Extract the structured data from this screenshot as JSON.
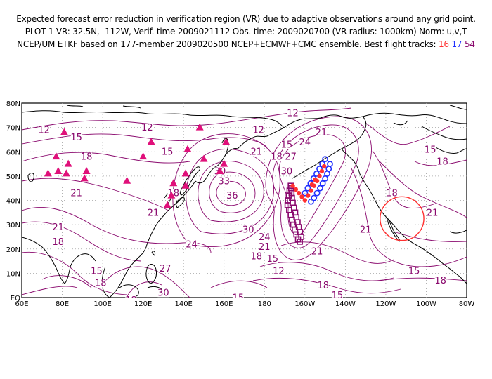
{
  "title": {
    "line1": "Expected forecast error reduction in verification region (VR) due to adaptive observations around any grid point.",
    "line2": "PLOT 1 VR: 32.5N, -112W, Verif. time 2009021112 Obs. time: 2009020700 (VR radius: 1000km) Norm: u,v,T",
    "line3_prefix": "NCEP/UM ETKF based on 177-member 2009020500 NCEP+ECMWF+CMC ensemble. Best flight tracks:",
    "tracks": [
      "16",
      "17",
      "54"
    ]
  },
  "colors": {
    "contour": "#8a0a6e",
    "track16": "#ff3030",
    "track17": "#2030ff",
    "track54": "#8a0a6e",
    "raob": "#e0107a",
    "vr_circle": "#ff3030",
    "grid": "#a0a0a0"
  },
  "axes": {
    "lon_labels": [
      "60E",
      "80E",
      "100E",
      "120E",
      "140E",
      "160E",
      "180",
      "160W",
      "140W",
      "120W",
      "100W",
      "80W"
    ],
    "lat_labels": [
      "EQ",
      "10N",
      "20N",
      "30N",
      "40N",
      "50N",
      "60N",
      "70N",
      "80N"
    ],
    "lon_range": [
      60,
      280
    ],
    "lat_range": [
      0,
      80
    ]
  },
  "verification_region": {
    "lat": 32.5,
    "lon": 248,
    "radius_km": 1000
  },
  "contour_labels": [
    {
      "text": "12",
      "lon": 71,
      "lat": 68
    },
    {
      "text": "15",
      "lon": 87,
      "lat": 65
    },
    {
      "text": "18",
      "lon": 92,
      "lat": 57
    },
    {
      "text": "12",
      "lon": 122,
      "lat": 69
    },
    {
      "text": "15",
      "lon": 132,
      "lat": 59
    },
    {
      "text": "12",
      "lon": 194,
      "lat": 75
    },
    {
      "text": "12",
      "lon": 177,
      "lat": 68
    },
    {
      "text": "21",
      "lon": 176,
      "lat": 59
    },
    {
      "text": "18",
      "lon": 186,
      "lat": 57
    },
    {
      "text": "15",
      "lon": 191,
      "lat": 62
    },
    {
      "text": "30",
      "lon": 158,
      "lat": 51
    },
    {
      "text": "33",
      "lon": 160,
      "lat": 47
    },
    {
      "text": "36",
      "lon": 164,
      "lat": 41
    },
    {
      "text": "18",
      "lon": 135,
      "lat": 42
    },
    {
      "text": "21",
      "lon": 87,
      "lat": 42
    },
    {
      "text": "21",
      "lon": 125,
      "lat": 34
    },
    {
      "text": "21",
      "lon": 78,
      "lat": 28
    },
    {
      "text": "18",
      "lon": 78,
      "lat": 22
    },
    {
      "text": "24",
      "lon": 144,
      "lat": 21
    },
    {
      "text": "30",
      "lon": 172,
      "lat": 27
    },
    {
      "text": "27",
      "lon": 193,
      "lat": 57
    },
    {
      "text": "24",
      "lon": 200,
      "lat": 63
    },
    {
      "text": "21",
      "lon": 208,
      "lat": 67
    },
    {
      "text": "30",
      "lon": 191,
      "lat": 51
    },
    {
      "text": "21",
      "lon": 230,
      "lat": 27
    },
    {
      "text": "18",
      "lon": 243,
      "lat": 42
    },
    {
      "text": "21",
      "lon": 263,
      "lat": 34
    },
    {
      "text": "15",
      "lon": 262,
      "lat": 60
    },
    {
      "text": "18",
      "lon": 268,
      "lat": 55
    },
    {
      "text": "24",
      "lon": 180,
      "lat": 24
    },
    {
      "text": "21",
      "lon": 180,
      "lat": 20
    },
    {
      "text": "18",
      "lon": 176,
      "lat": 16
    },
    {
      "text": "15",
      "lon": 184,
      "lat": 15
    },
    {
      "text": "21",
      "lon": 206,
      "lat": 18
    },
    {
      "text": "12",
      "lon": 187,
      "lat": 10
    },
    {
      "text": "18",
      "lon": 209,
      "lat": 4
    },
    {
      "text": "15",
      "lon": 216,
      "lat": 0
    },
    {
      "text": "18",
      "lon": 267,
      "lat": 6
    },
    {
      "text": "15",
      "lon": 254,
      "lat": 10
    },
    {
      "text": "15",
      "lon": 97,
      "lat": 10
    },
    {
      "text": "18",
      "lon": 99,
      "lat": 5
    },
    {
      "text": "18",
      "lon": 114,
      "lat": -2
    },
    {
      "text": "27",
      "lon": 131,
      "lat": 11
    },
    {
      "text": "30",
      "lon": 130,
      "lat": 1
    },
    {
      "text": "27",
      "lon": 137,
      "lat": -4
    },
    {
      "text": "15",
      "lon": 167,
      "lat": -1
    }
  ],
  "raob_sites": [
    {
      "lon": 81,
      "lat": 68
    },
    {
      "lon": 77,
      "lat": 58
    },
    {
      "lon": 73,
      "lat": 51
    },
    {
      "lon": 78,
      "lat": 52
    },
    {
      "lon": 83,
      "lat": 55
    },
    {
      "lon": 82,
      "lat": 51
    },
    {
      "lon": 92,
      "lat": 52
    },
    {
      "lon": 91,
      "lat": 49
    },
    {
      "lon": 112,
      "lat": 48
    },
    {
      "lon": 120,
      "lat": 58
    },
    {
      "lon": 124,
      "lat": 64
    },
    {
      "lon": 135,
      "lat": 47
    },
    {
      "lon": 134,
      "lat": 42
    },
    {
      "lon": 141,
      "lat": 51
    },
    {
      "lon": 141,
      "lat": 46
    },
    {
      "lon": 142,
      "lat": 61
    },
    {
      "lon": 150,
      "lat": 57
    },
    {
      "lon": 148,
      "lat": 70
    },
    {
      "lon": 158,
      "lat": 52
    },
    {
      "lon": 160,
      "lat": 55
    },
    {
      "lon": 161,
      "lat": 64
    },
    {
      "lon": 132,
      "lat": 38
    }
  ],
  "flight_tracks": {
    "t16": [
      [
        194,
        46
      ],
      [
        195.5,
        44.5
      ],
      [
        197,
        43
      ],
      [
        198.5,
        41.5
      ],
      [
        200,
        40
      ],
      [
        201.5,
        42
      ],
      [
        203,
        44
      ],
      [
        204.5,
        46
      ],
      [
        206,
        48
      ],
      [
        207.2,
        50
      ],
      [
        208.4,
        52
      ],
      [
        209.5,
        54
      ],
      [
        205,
        48.5
      ],
      [
        203.5,
        46.5
      ]
    ],
    "t17": [
      [
        203,
        39.5
      ],
      [
        204.5,
        41
      ],
      [
        206,
        43
      ],
      [
        207.5,
        45
      ],
      [
        208.8,
        47
      ],
      [
        210,
        49
      ],
      [
        211,
        51
      ],
      [
        211.8,
        53
      ],
      [
        212.4,
        55
      ],
      [
        210,
        57
      ],
      [
        208.6,
        55
      ],
      [
        207.2,
        53
      ],
      [
        205.8,
        51
      ],
      [
        204.3,
        49
      ],
      [
        202.8,
        47
      ],
      [
        201.4,
        45
      ],
      [
        200,
        43
      ]
    ],
    "t54": [
      [
        193,
        46
      ],
      [
        192.4,
        44
      ],
      [
        192,
        42
      ],
      [
        191.6,
        40
      ],
      [
        191.4,
        38
      ],
      [
        192.2,
        36
      ],
      [
        193,
        34
      ],
      [
        193.6,
        32
      ],
      [
        194.2,
        30
      ],
      [
        195,
        28
      ],
      [
        195.8,
        26
      ],
      [
        196.6,
        24
      ],
      [
        197.5,
        23
      ],
      [
        198.2,
        25
      ],
      [
        197.6,
        27
      ],
      [
        197,
        29
      ],
      [
        196.4,
        31
      ],
      [
        195.8,
        33
      ],
      [
        195.2,
        35
      ],
      [
        194.6,
        37
      ],
      [
        194,
        39
      ],
      [
        193.6,
        41
      ],
      [
        193.4,
        43
      ],
      [
        193.2,
        45
      ]
    ]
  }
}
